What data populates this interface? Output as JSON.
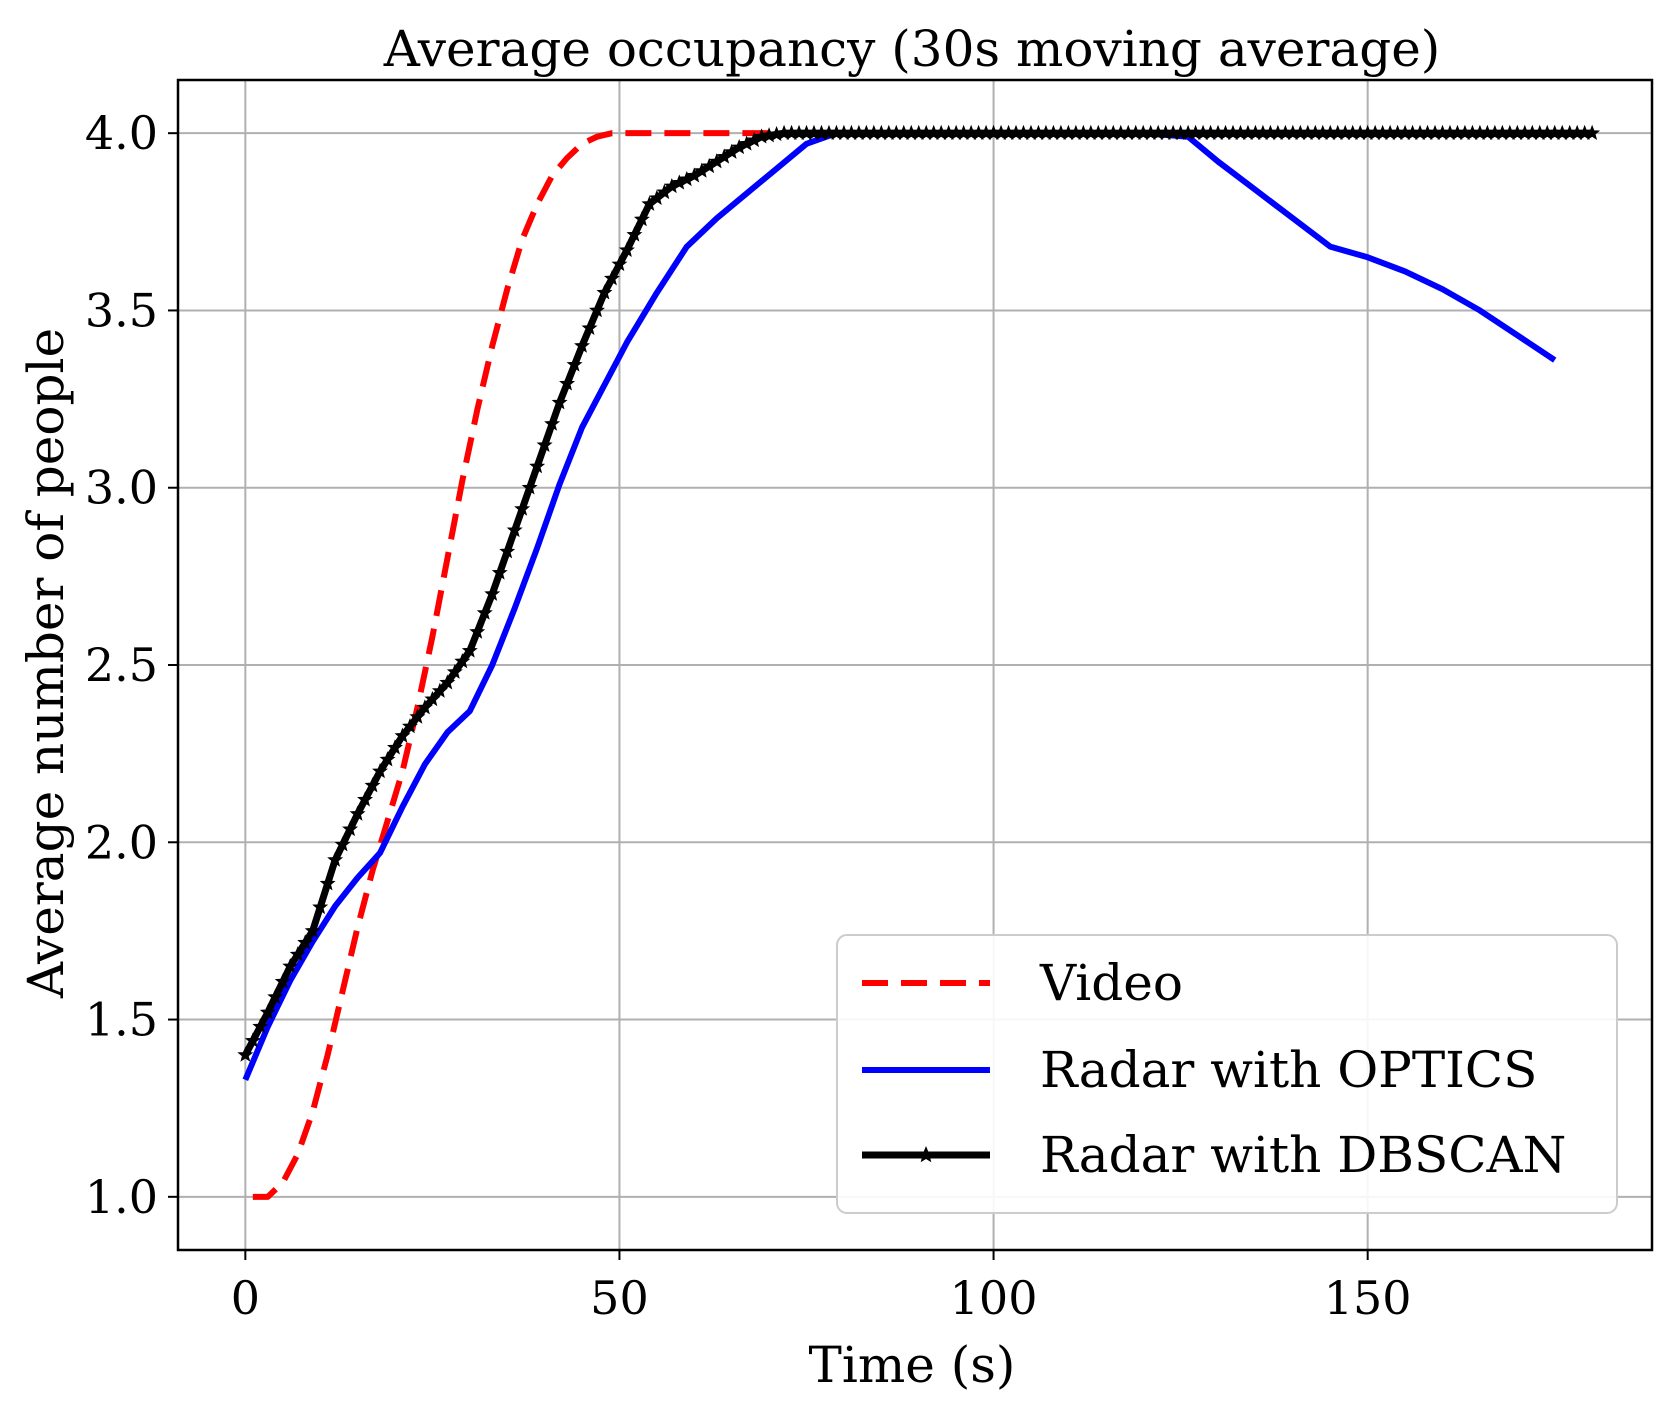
{
  "chart_data": {
    "type": "line",
    "title": "Average occupancy (30s moving average)",
    "xlabel": "Time (s)",
    "ylabel": "Average number of people",
    "xlim": [
      -9,
      188
    ],
    "ylim": [
      0.85,
      4.15
    ],
    "xticks": [
      0,
      50,
      100,
      150
    ],
    "xtick_labels": [
      "0",
      "50",
      "100",
      "150"
    ],
    "yticks": [
      1.0,
      1.5,
      2.0,
      2.5,
      3.0,
      3.5,
      4.0
    ],
    "ytick_labels": [
      "1.0",
      "1.5",
      "2.0",
      "2.5",
      "3.0",
      "3.5",
      "4.0"
    ],
    "grid": true,
    "legend_position": "lower-right",
    "series": [
      {
        "name": "Video",
        "color": "#ff0000",
        "style": "dashed",
        "marker": "none",
        "x": [
          1,
          3,
          5,
          7,
          9,
          11,
          13,
          15,
          17,
          19,
          21,
          23,
          25,
          27,
          29,
          31,
          33,
          35,
          37,
          39,
          41,
          43,
          45,
          47,
          49,
          55,
          60,
          65,
          70,
          80,
          100,
          120,
          140,
          160,
          180
        ],
        "y": [
          1.0,
          1.0,
          1.04,
          1.12,
          1.24,
          1.4,
          1.58,
          1.76,
          1.92,
          2.06,
          2.2,
          2.38,
          2.58,
          2.8,
          3.02,
          3.22,
          3.4,
          3.56,
          3.7,
          3.8,
          3.88,
          3.93,
          3.97,
          3.99,
          4.0,
          4.0,
          4.0,
          4.0,
          4.0,
          4.0,
          4.0,
          4.0,
          4.0,
          4.0,
          4.0
        ]
      },
      {
        "name": "Radar with OPTICS",
        "color": "#0000ff",
        "style": "solid",
        "marker": "none",
        "x": [
          0,
          3,
          6,
          9,
          12,
          15,
          18,
          21,
          24,
          27,
          30,
          33,
          36,
          39,
          42,
          45,
          48,
          51,
          55,
          59,
          63,
          67,
          71,
          75,
          79,
          90,
          100,
          110,
          120,
          126,
          130,
          135,
          140,
          145,
          150,
          155,
          160,
          165,
          170,
          175
        ],
        "y": [
          1.33,
          1.48,
          1.61,
          1.72,
          1.82,
          1.9,
          1.97,
          2.1,
          2.22,
          2.31,
          2.37,
          2.5,
          2.66,
          2.83,
          3.01,
          3.17,
          3.29,
          3.41,
          3.55,
          3.68,
          3.76,
          3.83,
          3.9,
          3.97,
          4.0,
          4.0,
          4.0,
          4.0,
          4.0,
          3.99,
          3.92,
          3.84,
          3.76,
          3.68,
          3.65,
          3.61,
          3.56,
          3.5,
          3.43,
          3.36
        ]
      },
      {
        "name": "Radar with DBSCAN",
        "color": "#000000",
        "style": "solid",
        "marker": "star",
        "x": [
          0,
          3,
          6,
          9,
          12,
          15,
          18,
          21,
          24,
          27,
          30,
          33,
          36,
          39,
          42,
          45,
          48,
          51,
          54,
          57,
          60,
          63,
          66,
          69,
          72,
          80,
          90,
          100,
          110,
          120,
          130,
          140,
          150,
          160,
          170,
          180
        ],
        "y": [
          1.4,
          1.52,
          1.65,
          1.75,
          1.95,
          2.08,
          2.2,
          2.3,
          2.38,
          2.45,
          2.54,
          2.7,
          2.88,
          3.06,
          3.24,
          3.4,
          3.55,
          3.67,
          3.8,
          3.85,
          3.88,
          3.92,
          3.96,
          3.99,
          4.0,
          4.0,
          4.0,
          4.0,
          4.0,
          4.0,
          4.0,
          4.0,
          4.0,
          4.0,
          4.0,
          4.0
        ]
      }
    ]
  }
}
